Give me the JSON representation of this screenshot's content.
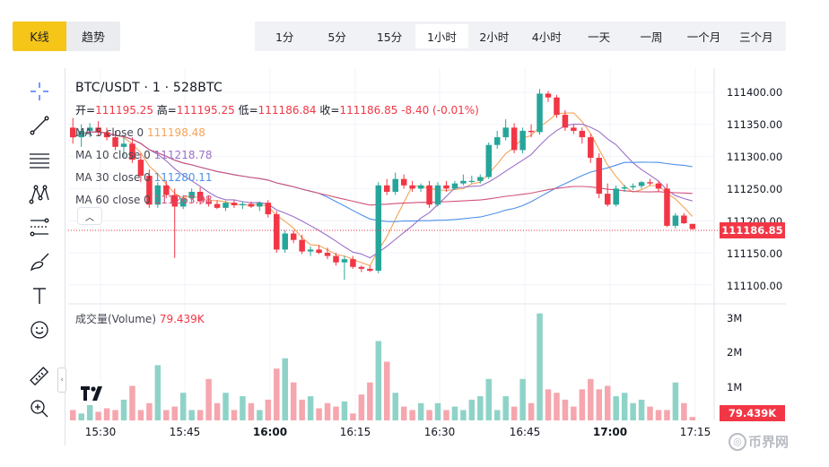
{
  "view_toggle": {
    "kline": "K线",
    "trend": "趋势"
  },
  "intervals": [
    "1分",
    "5分",
    "15分",
    "1小时",
    "2小时",
    "4小时",
    "一天",
    "一周",
    "一个月",
    "三个月"
  ],
  "active_interval": "1小时",
  "legend": {
    "pair": "BTC/USDT · 1 · 528BTC",
    "open_label": "开=",
    "open": "111195.25",
    "high_label": "高=",
    "high": "111195.25",
    "low_label": "低=",
    "low": "111186.84",
    "close_label": "收=",
    "close": "111186.85",
    "change": "-8.40 (-0.01%)",
    "ma": [
      {
        "label": "MA 5 close 0",
        "value": "111198.48",
        "color": "#f5a356"
      },
      {
        "label": "MA 10 close 0",
        "value": "111218.78",
        "color": "#9c6fc8"
      },
      {
        "label": "MA 30 close 0",
        "value": "111280.11",
        "color": "#4d8fe8"
      },
      {
        "label": "MA 60 close 0",
        "value": "111263.98",
        "color": "#d2527a"
      }
    ]
  },
  "volume_legend": {
    "label": "成交量(Volume)",
    "value": "79.439K"
  },
  "price_axis": [
    "111400.00",
    "111350.00",
    "111300.00",
    "111250.00",
    "111200.00",
    "111150.00",
    "111100.00"
  ],
  "current_price_badge": "111186.85",
  "volume_axis": [
    "3M",
    "2M",
    "1M"
  ],
  "volume_badge": "79.439K",
  "time_axis": [
    {
      "label": "15:30",
      "major": false
    },
    {
      "label": "15:45",
      "major": false
    },
    {
      "label": "16:00",
      "major": true
    },
    {
      "label": "16:15",
      "major": false
    },
    {
      "label": "16:30",
      "major": false
    },
    {
      "label": "16:45",
      "major": false
    },
    {
      "label": "17:00",
      "major": true
    },
    {
      "label": "17:15",
      "major": false
    }
  ],
  "watermark": "币界网",
  "watermark_symbol": "◎",
  "colors": {
    "up": "#26a69a",
    "down": "#f23645",
    "up_vol": "#8fd3c8",
    "down_vol": "#f6a6ae",
    "accent": "#f5c518"
  },
  "chart_data": {
    "type": "candlestick",
    "price_range": [
      111080,
      111420
    ],
    "candles": [
      {
        "o": 111345,
        "h": 111360,
        "l": 111320,
        "c": 111330
      },
      {
        "o": 111330,
        "h": 111350,
        "l": 111315,
        "c": 111340
      },
      {
        "o": 111340,
        "h": 111352,
        "l": 111330,
        "c": 111345
      },
      {
        "o": 111345,
        "h": 111355,
        "l": 111332,
        "c": 111338
      },
      {
        "o": 111338,
        "h": 111345,
        "l": 111325,
        "c": 111330
      },
      {
        "o": 111330,
        "h": 111340,
        "l": 111310,
        "c": 111315
      },
      {
        "o": 111315,
        "h": 111330,
        "l": 111300,
        "c": 111320
      },
      {
        "o": 111320,
        "h": 111330,
        "l": 111290,
        "c": 111295
      },
      {
        "o": 111295,
        "h": 111305,
        "l": 111260,
        "c": 111270
      },
      {
        "o": 111270,
        "h": 111280,
        "l": 111220,
        "c": 111225
      },
      {
        "o": 111225,
        "h": 111260,
        "l": 111220,
        "c": 111255
      },
      {
        "o": 111255,
        "h": 111262,
        "l": 111235,
        "c": 111240
      },
      {
        "o": 111240,
        "h": 111250,
        "l": 111142,
        "c": 111222
      },
      {
        "o": 111222,
        "h": 111240,
        "l": 111218,
        "c": 111235
      },
      {
        "o": 111235,
        "h": 111250,
        "l": 111228,
        "c": 111245
      },
      {
        "o": 111245,
        "h": 111252,
        "l": 111225,
        "c": 111230
      },
      {
        "o": 111230,
        "h": 111238,
        "l": 111222,
        "c": 111226
      },
      {
        "o": 111226,
        "h": 111232,
        "l": 111218,
        "c": 111220
      },
      {
        "o": 111220,
        "h": 111230,
        "l": 111215,
        "c": 111228
      },
      {
        "o": 111228,
        "h": 111232,
        "l": 111220,
        "c": 111224
      },
      {
        "o": 111224,
        "h": 111230,
        "l": 111218,
        "c": 111226
      },
      {
        "o": 111226,
        "h": 111230,
        "l": 111220,
        "c": 111222
      },
      {
        "o": 111222,
        "h": 111230,
        "l": 111215,
        "c": 111228
      },
      {
        "o": 111228,
        "h": 111232,
        "l": 111205,
        "c": 111210
      },
      {
        "o": 111210,
        "h": 111215,
        "l": 111150,
        "c": 111155
      },
      {
        "o": 111155,
        "h": 111185,
        "l": 111150,
        "c": 111180
      },
      {
        "o": 111180,
        "h": 111185,
        "l": 111165,
        "c": 111170
      },
      {
        "o": 111170,
        "h": 111178,
        "l": 111148,
        "c": 111152
      },
      {
        "o": 111152,
        "h": 111160,
        "l": 111145,
        "c": 111155
      },
      {
        "o": 111155,
        "h": 111162,
        "l": 111148,
        "c": 111150
      },
      {
        "o": 111150,
        "h": 111158,
        "l": 111140,
        "c": 111145
      },
      {
        "o": 111145,
        "h": 111150,
        "l": 111130,
        "c": 111135
      },
      {
        "o": 111135,
        "h": 111145,
        "l": 111108,
        "c": 111140
      },
      {
        "o": 111140,
        "h": 111145,
        "l": 111125,
        "c": 111128
      },
      {
        "o": 111128,
        "h": 111130,
        "l": 111120,
        "c": 111125
      },
      {
        "o": 111125,
        "h": 111130,
        "l": 111120,
        "c": 111122
      },
      {
        "o": 111122,
        "h": 111260,
        "l": 111118,
        "c": 111255
      },
      {
        "o": 111255,
        "h": 111265,
        "l": 111240,
        "c": 111245
      },
      {
        "o": 111245,
        "h": 111275,
        "l": 111240,
        "c": 111265
      },
      {
        "o": 111265,
        "h": 111272,
        "l": 111250,
        "c": 111255
      },
      {
        "o": 111255,
        "h": 111262,
        "l": 111245,
        "c": 111250
      },
      {
        "o": 111250,
        "h": 111258,
        "l": 111245,
        "c": 111255
      },
      {
        "o": 111255,
        "h": 111262,
        "l": 111220,
        "c": 111225
      },
      {
        "o": 111225,
        "h": 111260,
        "l": 111222,
        "c": 111255
      },
      {
        "o": 111255,
        "h": 111262,
        "l": 111245,
        "c": 111250
      },
      {
        "o": 111250,
        "h": 111262,
        "l": 111248,
        "c": 111258
      },
      {
        "o": 111258,
        "h": 111272,
        "l": 111255,
        "c": 111262
      },
      {
        "o": 111262,
        "h": 111270,
        "l": 111258,
        "c": 111262
      },
      {
        "o": 111262,
        "h": 111272,
        "l": 111258,
        "c": 111268
      },
      {
        "o": 111268,
        "h": 111322,
        "l": 111265,
        "c": 111318
      },
      {
        "o": 111318,
        "h": 111340,
        "l": 111312,
        "c": 111330
      },
      {
        "o": 111330,
        "h": 111358,
        "l": 111325,
        "c": 111345
      },
      {
        "o": 111345,
        "h": 111352,
        "l": 111305,
        "c": 111310
      },
      {
        "o": 111310,
        "h": 111345,
        "l": 111305,
        "c": 111340
      },
      {
        "o": 111340,
        "h": 111350,
        "l": 111330,
        "c": 111338
      },
      {
        "o": 111338,
        "h": 111405,
        "l": 111334,
        "c": 111398
      },
      {
        "o": 111398,
        "h": 111402,
        "l": 111385,
        "c": 111392
      },
      {
        "o": 111392,
        "h": 111396,
        "l": 111360,
        "c": 111365
      },
      {
        "o": 111365,
        "h": 111372,
        "l": 111340,
        "c": 111345
      },
      {
        "o": 111345,
        "h": 111350,
        "l": 111335,
        "c": 111340
      },
      {
        "o": 111340,
        "h": 111345,
        "l": 111320,
        "c": 111330
      },
      {
        "o": 111330,
        "h": 111335,
        "l": 111290,
        "c": 111298
      },
      {
        "o": 111298,
        "h": 111305,
        "l": 111235,
        "c": 111242
      },
      {
        "o": 111242,
        "h": 111258,
        "l": 111222,
        "c": 111225
      },
      {
        "o": 111225,
        "h": 111255,
        "l": 111222,
        "c": 111250
      },
      {
        "o": 111250,
        "h": 111256,
        "l": 111245,
        "c": 111252
      },
      {
        "o": 111252,
        "h": 111258,
        "l": 111248,
        "c": 111254
      },
      {
        "o": 111254,
        "h": 111262,
        "l": 111250,
        "c": 111260
      },
      {
        "o": 111260,
        "h": 111265,
        "l": 111255,
        "c": 111258
      },
      {
        "o": 111258,
        "h": 111262,
        "l": 111245,
        "c": 111250
      },
      {
        "o": 111250,
        "h": 111258,
        "l": 111190,
        "c": 111192
      },
      {
        "o": 111192,
        "h": 111212,
        "l": 111188,
        "c": 111208
      },
      {
        "o": 111208,
        "h": 111212,
        "l": 111195,
        "c": 111196
      },
      {
        "o": 111195,
        "h": 111195,
        "l": 111186,
        "c": 111187
      }
    ],
    "volume": [
      0.3,
      0.2,
      0.55,
      0.25,
      0.35,
      0.3,
      0.6,
      1.0,
      0.3,
      0.5,
      1.6,
      0.3,
      0.4,
      0.8,
      0.3,
      0.3,
      1.2,
      0.5,
      0.8,
      0.3,
      0.7,
      0.5,
      0.3,
      0.6,
      1.5,
      1.8,
      1.1,
      0.6,
      0.7,
      0.35,
      0.5,
      0.4,
      0.55,
      0.2,
      0.75,
      1.1,
      2.3,
      1.7,
      0.8,
      0.4,
      0.3,
      0.5,
      0.3,
      0.5,
      0.3,
      0.4,
      0.3,
      0.6,
      0.7,
      1.2,
      0.3,
      0.7,
      0.4,
      1.2,
      0.5,
      3.1,
      0.9,
      0.8,
      0.6,
      0.4,
      0.9,
      1.2,
      0.9,
      1.0,
      0.7,
      0.8,
      0.5,
      0.6,
      0.4,
      0.3,
      0.3,
      1.1,
      0.5,
      0.1
    ],
    "volume_range": [
      0,
      3500000
    ]
  }
}
